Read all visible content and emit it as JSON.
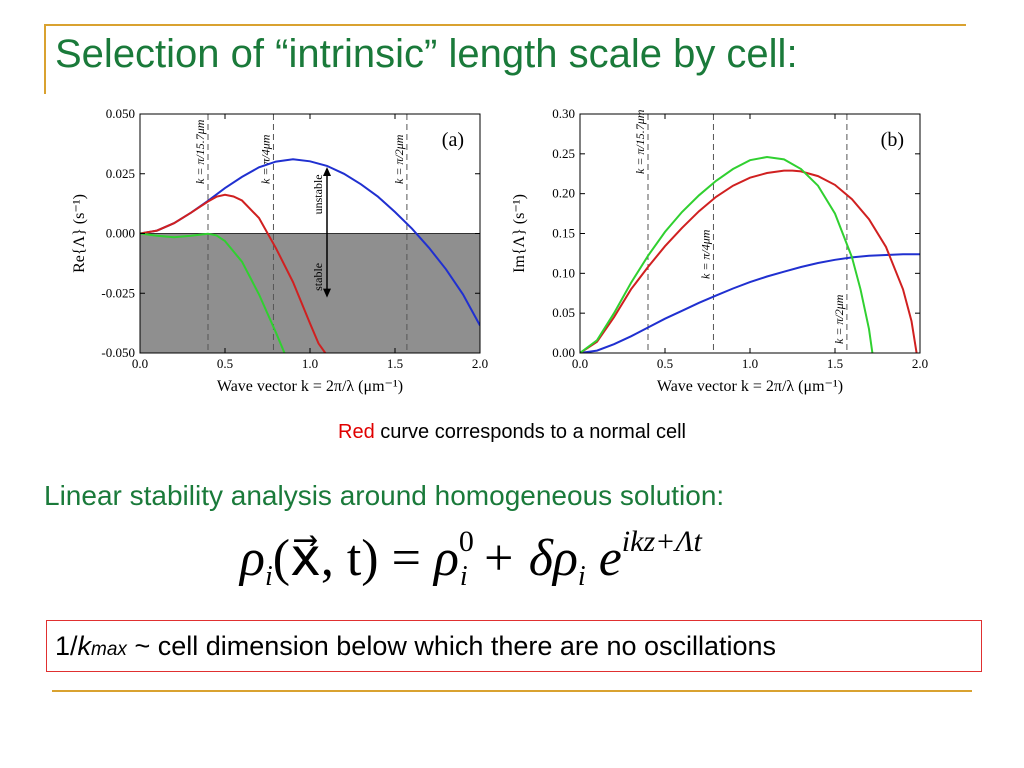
{
  "slide": {
    "title": "Selection of “intrinsic” length scale by cell:",
    "caption_red": "Red",
    "caption_rest": " curve corresponds to a normal cell",
    "subheading": "Linear stability analysis around homogeneous solution:",
    "equation": {
      "lhs": "ρ",
      "lhs_sub": "i",
      "args": "(x⃗, t)",
      "equals": " = ",
      "rho": "ρ",
      "rho_sup": "0",
      "rho_sub": "i",
      "plus": " + δρ",
      "delta_sub": "i",
      "exp_base": " e",
      "exp_sup": "ikz+Λt"
    },
    "box": {
      "prefix": "1/",
      "k": "k",
      "max": "max",
      "suffix": " ~ cell dimension below which there are no oscillations"
    }
  },
  "chart_data": [
    {
      "type": "line",
      "panel_label": "(a)",
      "xlabel": "Wave vector k = 2π/λ (μm⁻¹)",
      "ylabel": "Re{Λ} (s⁻¹)",
      "xlim": [
        0.0,
        2.0
      ],
      "ylim": [
        -0.05,
        0.05
      ],
      "xticks": [
        "0.0",
        "0.5",
        "1.0",
        "1.5",
        "2.0"
      ],
      "yticks": [
        "-0.050",
        "-0.025",
        "0.000",
        "0.025",
        "0.050"
      ],
      "shaded_region": "y < 0",
      "vlines": [
        {
          "x": 0.4,
          "label": "k = π/15.7μm"
        },
        {
          "x": 0.785,
          "label": "k = π/4μm"
        },
        {
          "x": 1.57,
          "label": "k = π/2μm"
        }
      ],
      "annotation": {
        "upper": "unstable",
        "lower": "stable",
        "x": 1.1
      },
      "series": [
        {
          "color": "#2030d0",
          "x": [
            0.0,
            0.1,
            0.2,
            0.3,
            0.4,
            0.5,
            0.6,
            0.7,
            0.8,
            0.9,
            1.0,
            1.1,
            1.2,
            1.3,
            1.4,
            1.5,
            1.6,
            1.7,
            1.8,
            1.9,
            2.0
          ],
          "y": [
            0.0,
            0.0012,
            0.0043,
            0.0087,
            0.0137,
            0.019,
            0.0237,
            0.0277,
            0.0301,
            0.0311,
            0.0302,
            0.0283,
            0.025,
            0.0206,
            0.0154,
            0.009,
            0.002,
            -0.006,
            -0.015,
            -0.0255,
            -0.0385
          ]
        },
        {
          "color": "#d02020",
          "x": [
            0.0,
            0.1,
            0.2,
            0.3,
            0.4,
            0.45,
            0.5,
            0.55,
            0.6,
            0.7,
            0.8,
            0.9,
            1.0,
            1.05,
            1.09
          ],
          "y": [
            0.0,
            0.0012,
            0.0043,
            0.0087,
            0.0134,
            0.0154,
            0.0162,
            0.0155,
            0.0138,
            0.0065,
            -0.0062,
            -0.0203,
            -0.0376,
            -0.046,
            -0.05
          ]
        },
        {
          "color": "#30d030",
          "x": [
            0.0,
            0.1,
            0.2,
            0.3,
            0.4,
            0.45,
            0.5,
            0.6,
            0.7,
            0.8,
            0.85
          ],
          "y": [
            0.0,
            -0.0009,
            -0.0016,
            -0.0009,
            -0.0001,
            -0.0008,
            -0.0032,
            -0.0118,
            -0.0255,
            -0.0415,
            -0.05
          ]
        }
      ]
    },
    {
      "type": "line",
      "panel_label": "(b)",
      "xlabel": "Wave vector k = 2π/λ (μm⁻¹)",
      "ylabel": "Im{Λ} (s⁻¹)",
      "xlim": [
        0.0,
        2.0
      ],
      "ylim": [
        0.0,
        0.3
      ],
      "xticks": [
        "0.0",
        "0.5",
        "1.0",
        "1.5",
        "2.0"
      ],
      "yticks": [
        "0.00",
        "0.05",
        "0.10",
        "0.15",
        "0.20",
        "0.25",
        "0.30"
      ],
      "vlines": [
        {
          "x": 0.4,
          "label": "k = π/15.7μm"
        },
        {
          "x": 0.785,
          "label": "k = π/4μm"
        },
        {
          "x": 1.57,
          "label": "k = π/2μm"
        }
      ],
      "series": [
        {
          "color": "#2030d0",
          "x": [
            0.0,
            0.1,
            0.2,
            0.3,
            0.4,
            0.5,
            0.6,
            0.7,
            0.8,
            0.9,
            1.0,
            1.1,
            1.2,
            1.3,
            1.4,
            1.5,
            1.6,
            1.7,
            1.8,
            1.9,
            2.0
          ],
          "y": [
            0.0,
            0.003,
            0.011,
            0.021,
            0.032,
            0.043,
            0.053,
            0.063,
            0.072,
            0.081,
            0.089,
            0.096,
            0.102,
            0.108,
            0.113,
            0.117,
            0.12,
            0.122,
            0.123,
            0.124,
            0.124
          ]
        },
        {
          "color": "#d02020",
          "x": [
            0.0,
            0.1,
            0.2,
            0.3,
            0.4,
            0.5,
            0.6,
            0.7,
            0.8,
            0.9,
            1.0,
            1.1,
            1.2,
            1.25,
            1.3,
            1.4,
            1.5,
            1.6,
            1.7,
            1.8,
            1.9,
            1.95,
            1.98
          ],
          "y": [
            0.0,
            0.014,
            0.045,
            0.08,
            0.108,
            0.134,
            0.157,
            0.178,
            0.196,
            0.21,
            0.22,
            0.226,
            0.229,
            0.229,
            0.228,
            0.222,
            0.211,
            0.193,
            0.168,
            0.133,
            0.08,
            0.04,
            0.0
          ]
        },
        {
          "color": "#30d030",
          "x": [
            0.0,
            0.1,
            0.2,
            0.3,
            0.4,
            0.5,
            0.6,
            0.7,
            0.8,
            0.9,
            1.0,
            1.1,
            1.2,
            1.3,
            1.4,
            1.5,
            1.6,
            1.65,
            1.7,
            1.72
          ],
          "y": [
            0.0,
            0.016,
            0.05,
            0.088,
            0.122,
            0.152,
            0.177,
            0.198,
            0.216,
            0.231,
            0.242,
            0.246,
            0.243,
            0.231,
            0.21,
            0.175,
            0.12,
            0.08,
            0.03,
            0.0
          ]
        }
      ]
    }
  ]
}
